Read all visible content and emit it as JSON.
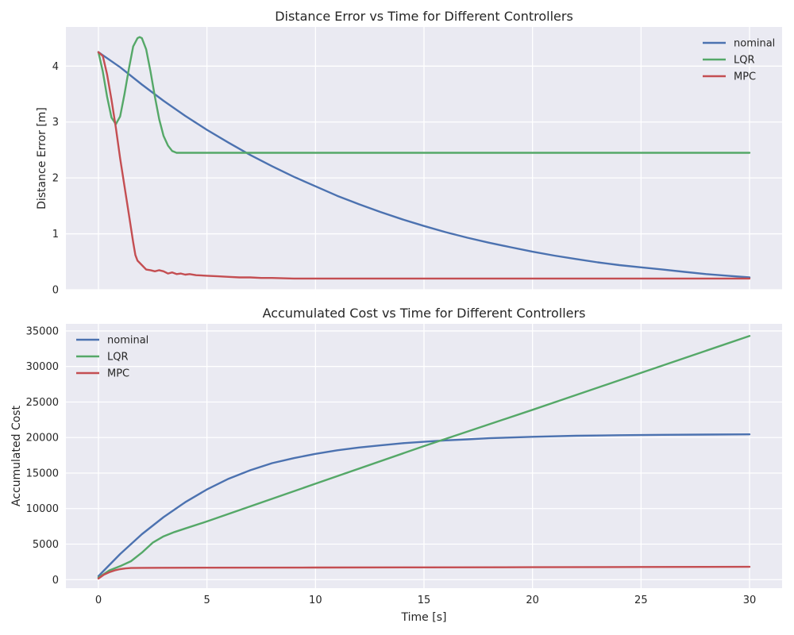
{
  "chart_data": [
    {
      "type": "line",
      "title": "Distance Error vs Time for Different Controllers",
      "xlabel": "",
      "ylabel": "Distance Error [m]",
      "xlim": [
        -1.5,
        31.5
      ],
      "ylim": [
        0,
        4.7
      ],
      "xticks": [
        0,
        5,
        10,
        15,
        20,
        25,
        30
      ],
      "xtick_labels_visible": false,
      "yticks": [
        0,
        1,
        2,
        3,
        4
      ],
      "grid": true,
      "legend_position": "top-right",
      "series": [
        {
          "name": "nominal",
          "color": "#4c72b0",
          "x": [
            0,
            1,
            2,
            3,
            4,
            5,
            6,
            7,
            8,
            9,
            10,
            11,
            12,
            13,
            14,
            15,
            16,
            17,
            18,
            19,
            20,
            21,
            22,
            23,
            24,
            25,
            26,
            27,
            28,
            29,
            30
          ],
          "y": [
            4.25,
            3.98,
            3.67,
            3.38,
            3.11,
            2.86,
            2.63,
            2.41,
            2.21,
            2.02,
            1.85,
            1.68,
            1.53,
            1.39,
            1.26,
            1.14,
            1.03,
            0.93,
            0.84,
            0.76,
            0.68,
            0.61,
            0.55,
            0.49,
            0.44,
            0.4,
            0.36,
            0.32,
            0.28,
            0.25,
            0.22
          ]
        },
        {
          "name": "LQR",
          "color": "#55a868",
          "x": [
            0,
            0.2,
            0.4,
            0.6,
            0.8,
            1.0,
            1.2,
            1.4,
            1.6,
            1.8,
            1.9,
            2.0,
            2.2,
            2.4,
            2.6,
            2.8,
            3.0,
            3.2,
            3.4,
            3.6,
            4.0,
            5,
            10,
            15,
            20,
            25,
            30
          ],
          "y": [
            4.25,
            3.9,
            3.45,
            3.08,
            2.96,
            3.1,
            3.5,
            3.95,
            4.35,
            4.5,
            4.52,
            4.5,
            4.3,
            3.9,
            3.45,
            3.05,
            2.75,
            2.58,
            2.48,
            2.45,
            2.45,
            2.45,
            2.45,
            2.45,
            2.45,
            2.45,
            2.45
          ]
        },
        {
          "name": "MPC",
          "color": "#c44e52",
          "x": [
            0,
            0.2,
            0.4,
            0.6,
            0.8,
            1.0,
            1.2,
            1.4,
            1.6,
            1.7,
            1.8,
            2.0,
            2.2,
            2.4,
            2.6,
            2.8,
            3.0,
            3.2,
            3.4,
            3.6,
            3.8,
            4.0,
            4.2,
            4.5,
            5.0,
            5.5,
            6.0,
            6.5,
            7.0,
            7.5,
            8.0,
            9.0,
            10.0,
            11.0,
            12,
            15,
            20,
            25,
            30
          ],
          "y": [
            4.25,
            4.18,
            3.85,
            3.4,
            2.9,
            2.35,
            1.85,
            1.35,
            0.85,
            0.62,
            0.52,
            0.44,
            0.36,
            0.35,
            0.33,
            0.35,
            0.33,
            0.29,
            0.31,
            0.28,
            0.29,
            0.27,
            0.28,
            0.26,
            0.25,
            0.24,
            0.23,
            0.22,
            0.22,
            0.21,
            0.21,
            0.2,
            0.2,
            0.2,
            0.2,
            0.2,
            0.2,
            0.2,
            0.2
          ]
        }
      ]
    },
    {
      "type": "line",
      "title": "Accumulated Cost vs Time for Different Controllers",
      "xlabel": "Time [s]",
      "ylabel": "Accumulated Cost",
      "xlim": [
        -1.5,
        31.5
      ],
      "ylim": [
        -1200,
        36000
      ],
      "xticks": [
        0,
        5,
        10,
        15,
        20,
        25,
        30
      ],
      "yticks": [
        0,
        5000,
        10000,
        15000,
        20000,
        25000,
        30000,
        35000
      ],
      "grid": true,
      "legend_position": "top-left",
      "series": [
        {
          "name": "nominal",
          "color": "#4c72b0",
          "x": [
            0,
            1,
            2,
            3,
            4,
            5,
            6,
            7,
            8,
            9,
            10,
            11,
            12,
            13,
            14,
            15,
            16,
            17,
            18,
            19,
            20,
            22,
            24,
            26,
            28,
            30
          ],
          "y": [
            500,
            3600,
            6400,
            8800,
            10900,
            12700,
            14200,
            15400,
            16400,
            17100,
            17700,
            18200,
            18600,
            18900,
            19200,
            19400,
            19600,
            19750,
            19900,
            20000,
            20100,
            20250,
            20330,
            20380,
            20420,
            20450
          ]
        },
        {
          "name": "LQR",
          "color": "#55a868",
          "x": [
            0,
            0.5,
            1,
            1.5,
            2,
            2.5,
            3,
            3.5,
            4,
            5,
            10,
            15,
            20,
            25,
            30
          ],
          "y": [
            300,
            1300,
            1900,
            2600,
            3800,
            5200,
            6100,
            6700,
            7200,
            8200,
            13500,
            18800,
            23900,
            29100,
            34300
          ]
        },
        {
          "name": "MPC",
          "color": "#c44e52",
          "x": [
            0,
            0.25,
            0.5,
            0.75,
            1.0,
            1.25,
            1.5,
            2,
            3,
            5,
            10,
            15,
            20,
            25,
            30
          ],
          "y": [
            150,
            700,
            1050,
            1300,
            1480,
            1580,
            1640,
            1660,
            1670,
            1680,
            1710,
            1730,
            1750,
            1780,
            1800
          ]
        }
      ]
    }
  ]
}
